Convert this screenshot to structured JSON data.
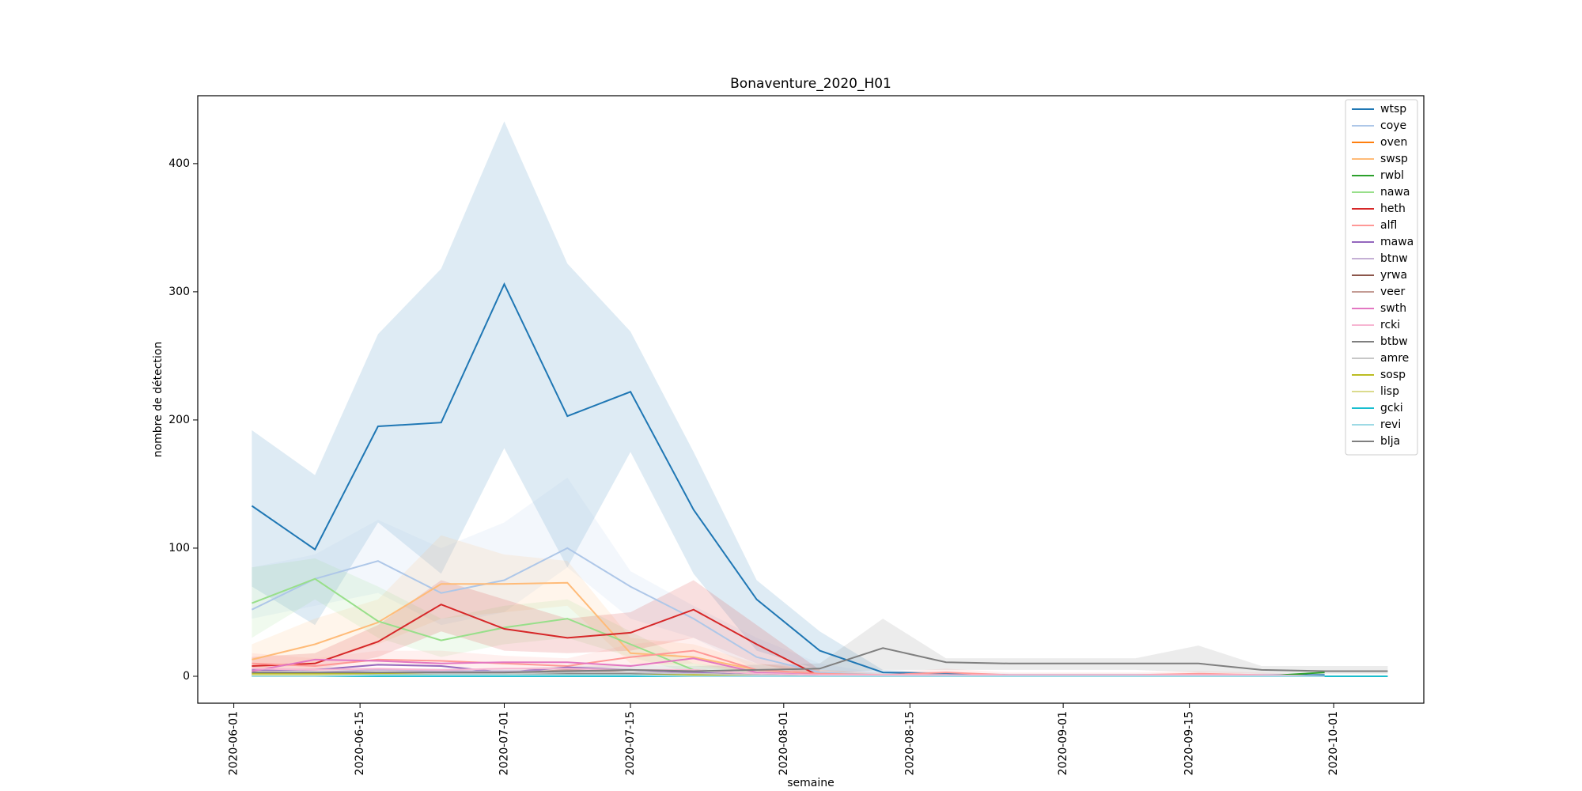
{
  "chart_data": {
    "type": "line",
    "title": "Bonaventure_2020_H01",
    "xlabel": "semaine",
    "ylabel": "nombre de détection",
    "x": [
      "2020-06-03",
      "2020-06-10",
      "2020-06-17",
      "2020-06-24",
      "2020-07-01",
      "2020-07-08",
      "2020-07-15",
      "2020-07-22",
      "2020-07-29",
      "2020-08-05",
      "2020-08-12",
      "2020-08-19",
      "2020-08-26",
      "2020-09-02",
      "2020-09-09",
      "2020-09-16",
      "2020-09-23",
      "2020-09-30",
      "2020-10-07"
    ],
    "xlim": [
      "2020-05-28",
      "2020-10-11"
    ],
    "xticks": [
      "2020-06-01",
      "2020-06-15",
      "2020-07-01",
      "2020-07-15",
      "2020-08-01",
      "2020-08-15",
      "2020-09-01",
      "2020-09-15",
      "2020-10-01"
    ],
    "ylim": [
      -21,
      453
    ],
    "yticks": [
      0,
      100,
      200,
      300,
      400
    ],
    "legend": "upper right",
    "series": [
      {
        "name": "wtsp",
        "color": "#1f77b4",
        "values": [
          133,
          99,
          195,
          198,
          306,
          203,
          222,
          130,
          60,
          20,
          3,
          2,
          1,
          1,
          1,
          1,
          1,
          1,
          null
        ],
        "lower": [
          70,
          40,
          120,
          80,
          178,
          85,
          175,
          80,
          20,
          5,
          0,
          0,
          0,
          0,
          0,
          0,
          0,
          0,
          null
        ],
        "upper": [
          192,
          157,
          267,
          318,
          433,
          322,
          269,
          175,
          75,
          35,
          5,
          3,
          2,
          2,
          2,
          2,
          2,
          2,
          null
        ]
      },
      {
        "name": "coye",
        "color": "#aec7e8",
        "values": [
          52,
          76,
          90,
          65,
          75,
          100,
          70,
          45,
          15,
          3,
          1,
          1,
          0,
          0,
          0,
          0,
          0,
          0,
          null
        ],
        "lower": [
          45,
          55,
          65,
          40,
          50,
          85,
          45,
          30,
          5,
          0,
          0,
          0,
          0,
          0,
          0,
          0,
          0,
          0,
          null
        ],
        "upper": [
          85,
          95,
          122,
          100,
          120,
          155,
          82,
          55,
          30,
          10,
          2,
          2,
          1,
          1,
          1,
          1,
          1,
          1,
          null
        ]
      },
      {
        "name": "oven",
        "color": "#ff7f0e",
        "values": [
          3,
          2,
          1,
          2,
          1,
          2,
          1,
          1,
          0,
          0,
          0,
          0,
          0,
          0,
          0,
          0,
          0,
          0,
          null
        ]
      },
      {
        "name": "swsp",
        "color": "#ffbb78",
        "values": [
          13,
          25,
          42,
          72,
          72,
          73,
          18,
          15,
          5,
          2,
          1,
          1,
          0,
          0,
          0,
          0,
          0,
          0,
          null
        ],
        "lower": [
          5,
          10,
          25,
          45,
          50,
          55,
          10,
          8,
          2,
          0,
          0,
          0,
          0,
          0,
          0,
          0,
          0,
          0,
          null
        ],
        "upper": [
          25,
          45,
          60,
          110,
          95,
          90,
          30,
          25,
          10,
          5,
          2,
          2,
          1,
          1,
          1,
          1,
          1,
          1,
          null
        ]
      },
      {
        "name": "rwbl",
        "color": "#2ca02c",
        "values": [
          1,
          1,
          1,
          1,
          1,
          1,
          1,
          1,
          1,
          0,
          0,
          0,
          0,
          0,
          0,
          0,
          0,
          3,
          null
        ]
      },
      {
        "name": "nawa",
        "color": "#98df8a",
        "values": [
          57,
          76,
          43,
          28,
          38,
          45,
          25,
          5,
          2,
          1,
          0,
          0,
          0,
          0,
          0,
          0,
          0,
          0,
          null
        ],
        "lower": [
          30,
          60,
          30,
          15,
          25,
          30,
          15,
          2,
          0,
          0,
          0,
          0,
          0,
          0,
          0,
          0,
          0,
          0,
          null
        ],
        "upper": [
          85,
          92,
          70,
          45,
          55,
          60,
          35,
          10,
          5,
          2,
          1,
          1,
          1,
          1,
          1,
          1,
          1,
          1,
          null
        ]
      },
      {
        "name": "heth",
        "color": "#d62728",
        "values": [
          8,
          10,
          27,
          56,
          37,
          30,
          34,
          52,
          25,
          0,
          null,
          null,
          null,
          null,
          null,
          null,
          null,
          null,
          null
        ],
        "lower": [
          3,
          5,
          15,
          35,
          20,
          18,
          20,
          30,
          10,
          0,
          null,
          null,
          null,
          null,
          null,
          null,
          null,
          null,
          null
        ],
        "upper": [
          15,
          18,
          40,
          75,
          60,
          45,
          50,
          75,
          40,
          5,
          null,
          null,
          null,
          null,
          null,
          null,
          null,
          null,
          null
        ]
      },
      {
        "name": "alfl",
        "color": "#ff9896",
        "values": [
          10,
          8,
          13,
          12,
          10,
          8,
          15,
          20,
          5,
          2,
          1,
          3,
          1,
          1,
          1,
          2,
          1,
          0,
          0
        ],
        "lower": [
          5,
          4,
          8,
          7,
          6,
          4,
          8,
          10,
          2,
          0,
          0,
          0,
          0,
          0,
          0,
          0,
          0,
          0,
          0
        ],
        "upper": [
          18,
          14,
          20,
          20,
          16,
          14,
          25,
          30,
          10,
          5,
          3,
          6,
          3,
          3,
          3,
          4,
          3,
          1,
          1
        ]
      },
      {
        "name": "mawa",
        "color": "#9467bd",
        "values": [
          5,
          5,
          9,
          8,
          3,
          7,
          5,
          3,
          1,
          0,
          0,
          0,
          0,
          0,
          0,
          0,
          0,
          0,
          null
        ]
      },
      {
        "name": "btnw",
        "color": "#c5b0d5",
        "values": [
          3,
          3,
          5,
          4,
          4,
          4,
          3,
          2,
          1,
          0,
          0,
          0,
          0,
          0,
          0,
          0,
          0,
          0,
          null
        ]
      },
      {
        "name": "yrwa",
        "color": "#8c564b",
        "values": [
          2,
          1,
          2,
          2,
          2,
          3,
          2,
          1,
          1,
          0,
          0,
          0,
          0,
          0,
          0,
          0,
          0,
          0,
          null
        ]
      },
      {
        "name": "veer",
        "color": "#c49c94",
        "values": [
          3,
          2,
          3,
          3,
          2,
          5,
          3,
          2,
          1,
          0,
          0,
          0,
          0,
          0,
          0,
          0,
          0,
          0,
          null
        ]
      },
      {
        "name": "swth",
        "color": "#e377c2",
        "values": [
          4,
          13,
          12,
          10,
          11,
          11,
          8,
          14,
          3,
          1,
          0,
          0,
          0,
          0,
          0,
          0,
          0,
          0,
          null
        ]
      },
      {
        "name": "rcki",
        "color": "#f7b6d2",
        "values": [
          6,
          5,
          6,
          5,
          6,
          6,
          5,
          5,
          2,
          1,
          1,
          1,
          1,
          1,
          1,
          1,
          1,
          0,
          0
        ]
      },
      {
        "name": "btbw",
        "color": "#7f7f7f",
        "values": [
          1,
          1,
          1,
          1,
          1,
          2,
          2,
          1,
          1,
          0,
          0,
          0,
          0,
          0,
          0,
          0,
          0,
          0,
          null
        ]
      },
      {
        "name": "amre",
        "color": "#c7c7c7",
        "values": [
          2,
          2,
          2,
          2,
          2,
          3,
          3,
          2,
          1,
          0,
          0,
          0,
          0,
          0,
          0,
          0,
          0,
          0,
          null
        ]
      },
      {
        "name": "sosp",
        "color": "#bcbd22",
        "values": [
          2,
          2,
          2,
          1,
          1,
          1,
          1,
          1,
          0,
          0,
          0,
          0,
          0,
          0,
          0,
          0,
          0,
          0,
          null
        ]
      },
      {
        "name": "lisp",
        "color": "#dbdb8d",
        "values": [
          1,
          1,
          1,
          1,
          1,
          1,
          1,
          0,
          0,
          0,
          0,
          0,
          0,
          0,
          0,
          0,
          0,
          0,
          null
        ]
      },
      {
        "name": "gcki",
        "color": "#17becf",
        "values": [
          0,
          0,
          0,
          0,
          0,
          0,
          0,
          0,
          0,
          0,
          0,
          0,
          0,
          0,
          0,
          0,
          0,
          0,
          0
        ]
      },
      {
        "name": "revi",
        "color": "#9edae5",
        "values": [
          0,
          0,
          1,
          1,
          1,
          1,
          1,
          0,
          0,
          0,
          0,
          0,
          0,
          0,
          0,
          0,
          0,
          0,
          null
        ]
      },
      {
        "name": "blja",
        "color": "#7f7f7f",
        "values": [
          3,
          3,
          3,
          3,
          3,
          4,
          5,
          4,
          5,
          6,
          22,
          11,
          10,
          10,
          10,
          10,
          5,
          4,
          4
        ],
        "lower": [
          1,
          1,
          1,
          1,
          1,
          2,
          2,
          2,
          2,
          2,
          5,
          5,
          5,
          5,
          5,
          3,
          2,
          2,
          2
        ],
        "upper": [
          6,
          6,
          6,
          6,
          6,
          8,
          9,
          8,
          9,
          10,
          45,
          14,
          14,
          14,
          14,
          24,
          8,
          8,
          8
        ]
      }
    ]
  }
}
